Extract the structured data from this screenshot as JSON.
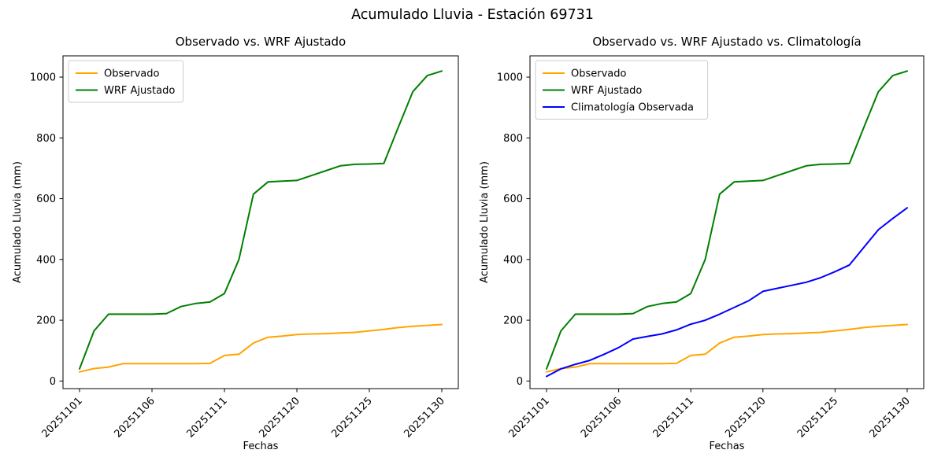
{
  "figure": {
    "title": "Acumulado Lluvia - Estación 69731",
    "background_color": "#ffffff",
    "text_color": "#000000",
    "series_colors": {
      "observado": "#FFA500",
      "wrf_ajustado": "#008000",
      "climatologia_observada": "#0000FF"
    }
  },
  "chart_data": [
    {
      "type": "line",
      "title": "Observado vs. WRF Ajustado",
      "xlabel": "Fechas",
      "ylabel": "Acumulado Lluvia (mm)",
      "ylim": [
        -25,
        1070
      ],
      "y_ticks": [
        0,
        200,
        400,
        600,
        800,
        1000
      ],
      "n_points": 26,
      "x_ticks": [
        {
          "index": 0,
          "label": "20251101"
        },
        {
          "index": 5,
          "label": "20251106"
        },
        {
          "index": 10,
          "label": "20251111"
        },
        {
          "index": 15,
          "label": "20251120"
        },
        {
          "index": 20,
          "label": "20251125"
        },
        {
          "index": 25,
          "label": "20251130"
        }
      ],
      "grid": false,
      "legend_position": "upper-left",
      "series": [
        {
          "name": "Observado",
          "color": "#FFA500",
          "values": [
            30,
            41,
            46,
            57,
            57,
            57,
            57,
            57,
            57,
            58,
            84,
            88,
            125,
            144,
            148,
            153,
            155,
            156,
            158,
            160,
            165,
            170,
            176,
            180,
            183,
            186
          ]
        },
        {
          "name": "WRF Ajustado",
          "color": "#008000",
          "values": [
            40,
            165,
            220,
            220,
            220,
            220,
            222,
            245,
            255,
            260,
            288,
            400,
            615,
            655,
            658,
            660,
            676,
            692,
            708,
            713,
            714,
            716,
            835,
            952,
            1005,
            1020
          ]
        }
      ]
    },
    {
      "type": "line",
      "title": "Observado vs. WRF Ajustado vs. Climatología",
      "xlabel": "Fechas",
      "ylabel": "Acumulado Lluvia (mm)",
      "ylim": [
        -25,
        1070
      ],
      "y_ticks": [
        0,
        200,
        400,
        600,
        800,
        1000
      ],
      "n_points": 26,
      "x_ticks": [
        {
          "index": 0,
          "label": "20251101"
        },
        {
          "index": 5,
          "label": "20251106"
        },
        {
          "index": 10,
          "label": "20251111"
        },
        {
          "index": 15,
          "label": "20251120"
        },
        {
          "index": 20,
          "label": "20251125"
        },
        {
          "index": 25,
          "label": "20251130"
        }
      ],
      "grid": false,
      "legend_position": "upper-left",
      "series": [
        {
          "name": "Observado",
          "color": "#FFA500",
          "values": [
            30,
            41,
            46,
            57,
            57,
            57,
            57,
            57,
            57,
            58,
            84,
            88,
            125,
            144,
            148,
            153,
            155,
            156,
            158,
            160,
            165,
            170,
            176,
            180,
            183,
            186
          ]
        },
        {
          "name": "WRF Ajustado",
          "color": "#008000",
          "values": [
            40,
            165,
            220,
            220,
            220,
            220,
            222,
            245,
            255,
            260,
            288,
            400,
            615,
            655,
            658,
            660,
            676,
            692,
            708,
            713,
            714,
            716,
            835,
            952,
            1005,
            1020
          ]
        },
        {
          "name": "Climatología Observada",
          "color": "#0000FF",
          "values": [
            15,
            40,
            55,
            68,
            88,
            110,
            138,
            147,
            155,
            168,
            187,
            200,
            220,
            242,
            264,
            295,
            305,
            315,
            325,
            340,
            360,
            382,
            440,
            498,
            535,
            570
          ]
        }
      ]
    }
  ]
}
